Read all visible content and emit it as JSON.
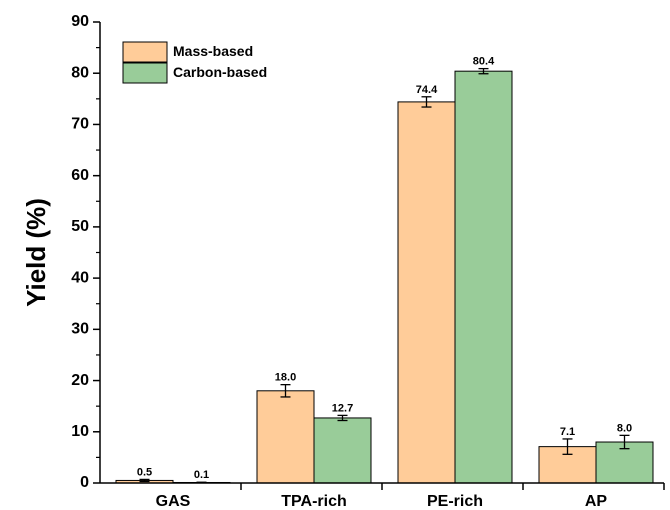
{
  "chart_data": {
    "type": "bar",
    "title": "",
    "xlabel": "",
    "ylabel": "Yield (%)",
    "ylim": [
      0,
      90
    ],
    "yticks": [
      0,
      10,
      20,
      30,
      40,
      50,
      60,
      70,
      80,
      90
    ],
    "categories": [
      "GAS",
      "TPA-rich",
      "PE-rich",
      "AP"
    ],
    "series": [
      {
        "name": "Mass-based",
        "values": [
          0.5,
          18.0,
          74.4,
          7.1
        ],
        "labels": [
          "0.5",
          "18.0",
          "74.4",
          "7.1"
        ],
        "errors": [
          0.2,
          1.2,
          1.0,
          1.5
        ],
        "color": "#FFCC99"
      },
      {
        "name": "Carbon-based",
        "values": [
          0.1,
          12.7,
          80.4,
          8.0
        ],
        "labels": [
          "0.1",
          "12.7",
          "80.4",
          "8.0"
        ],
        "errors": [
          0.05,
          0.5,
          0.5,
          1.3
        ],
        "color": "#99CC99"
      }
    ],
    "legend_position": "top-left",
    "grid": false
  }
}
